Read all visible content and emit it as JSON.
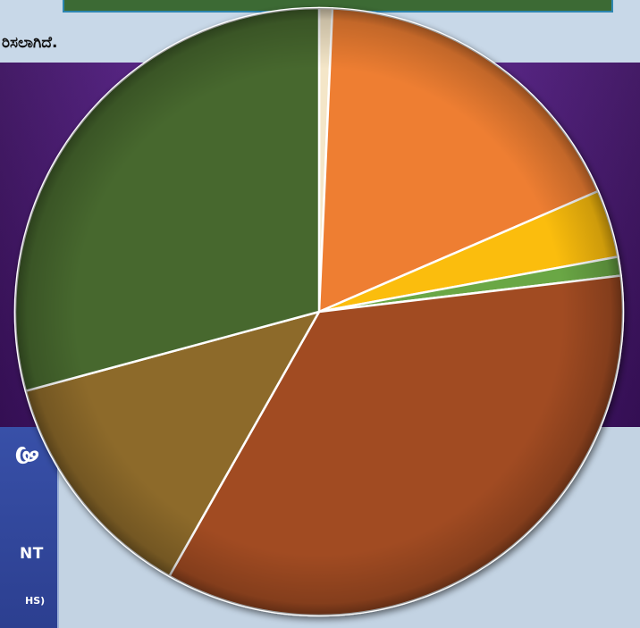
{
  "page": {
    "subtitle_fragment": "ರಿಸಲಾಗಿದೆ.",
    "box_glyph": "ತಿ",
    "box_text_line1": "NT",
    "box_text_line2": "HS)"
  },
  "colors": {
    "background": "#c8d8e8",
    "purple": "#5a2090",
    "blue_box": "#3850a8",
    "slice_stroke": "#ffffff"
  },
  "chart_data": {
    "type": "pie",
    "title": "",
    "start_angle_deg": 0,
    "direction": "clockwise",
    "slices": [
      {
        "value": 0.7,
        "color": "#f4e6c8"
      },
      {
        "value": 17.8,
        "color": "#ee7e32"
      },
      {
        "value": 3.6,
        "color": "#fbbd11"
      },
      {
        "value": 1.0,
        "color": "#6aa744"
      },
      {
        "value": 35.1,
        "color": "#a14c22"
      },
      {
        "value": 12.6,
        "color": "#8d6a2c"
      },
      {
        "value": 29.2,
        "color": "#47682f"
      }
    ]
  }
}
